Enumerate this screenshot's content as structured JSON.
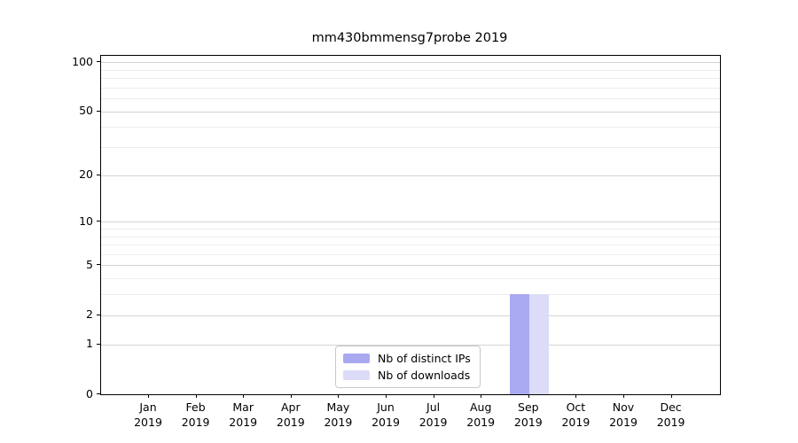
{
  "figure": {
    "background": "#ffffff",
    "text_color": "#000000",
    "spine_color": "#000000",
    "grid_major_color": "#d4d4d4",
    "grid_minor_color": "#ededed",
    "legend_border_color": "#c8c8c8"
  },
  "chart_data": {
    "type": "bar",
    "title": "mm430bmmensg7probe 2019",
    "xlabel": "",
    "ylabel": "",
    "categories": [
      "Jan",
      "Feb",
      "Mar",
      "Apr",
      "May",
      "Jun",
      "Jul",
      "Aug",
      "Sep",
      "Oct",
      "Nov",
      "Dec"
    ],
    "category_year": "2019",
    "series": [
      {
        "name": "Nb of distinct IPs",
        "color": "#a9a9f1",
        "values": [
          0,
          0,
          0,
          0,
          0,
          0,
          0,
          0,
          3,
          0,
          0,
          0
        ]
      },
      {
        "name": "Nb of downloads",
        "color": "#dcdcf8",
        "values": [
          0,
          0,
          0,
          0,
          0,
          0,
          0,
          0,
          3,
          0,
          0,
          0
        ]
      }
    ],
    "yscale": "log1p",
    "ylim": [
      0,
      100
    ],
    "y_major_ticks": [
      0,
      1,
      2,
      5,
      10,
      20,
      50,
      100
    ],
    "y_minor_ticks": [
      3,
      4,
      6,
      7,
      8,
      9,
      30,
      40,
      60,
      70,
      80,
      90
    ],
    "grid": "horizontal",
    "legend_position": "lower center"
  }
}
